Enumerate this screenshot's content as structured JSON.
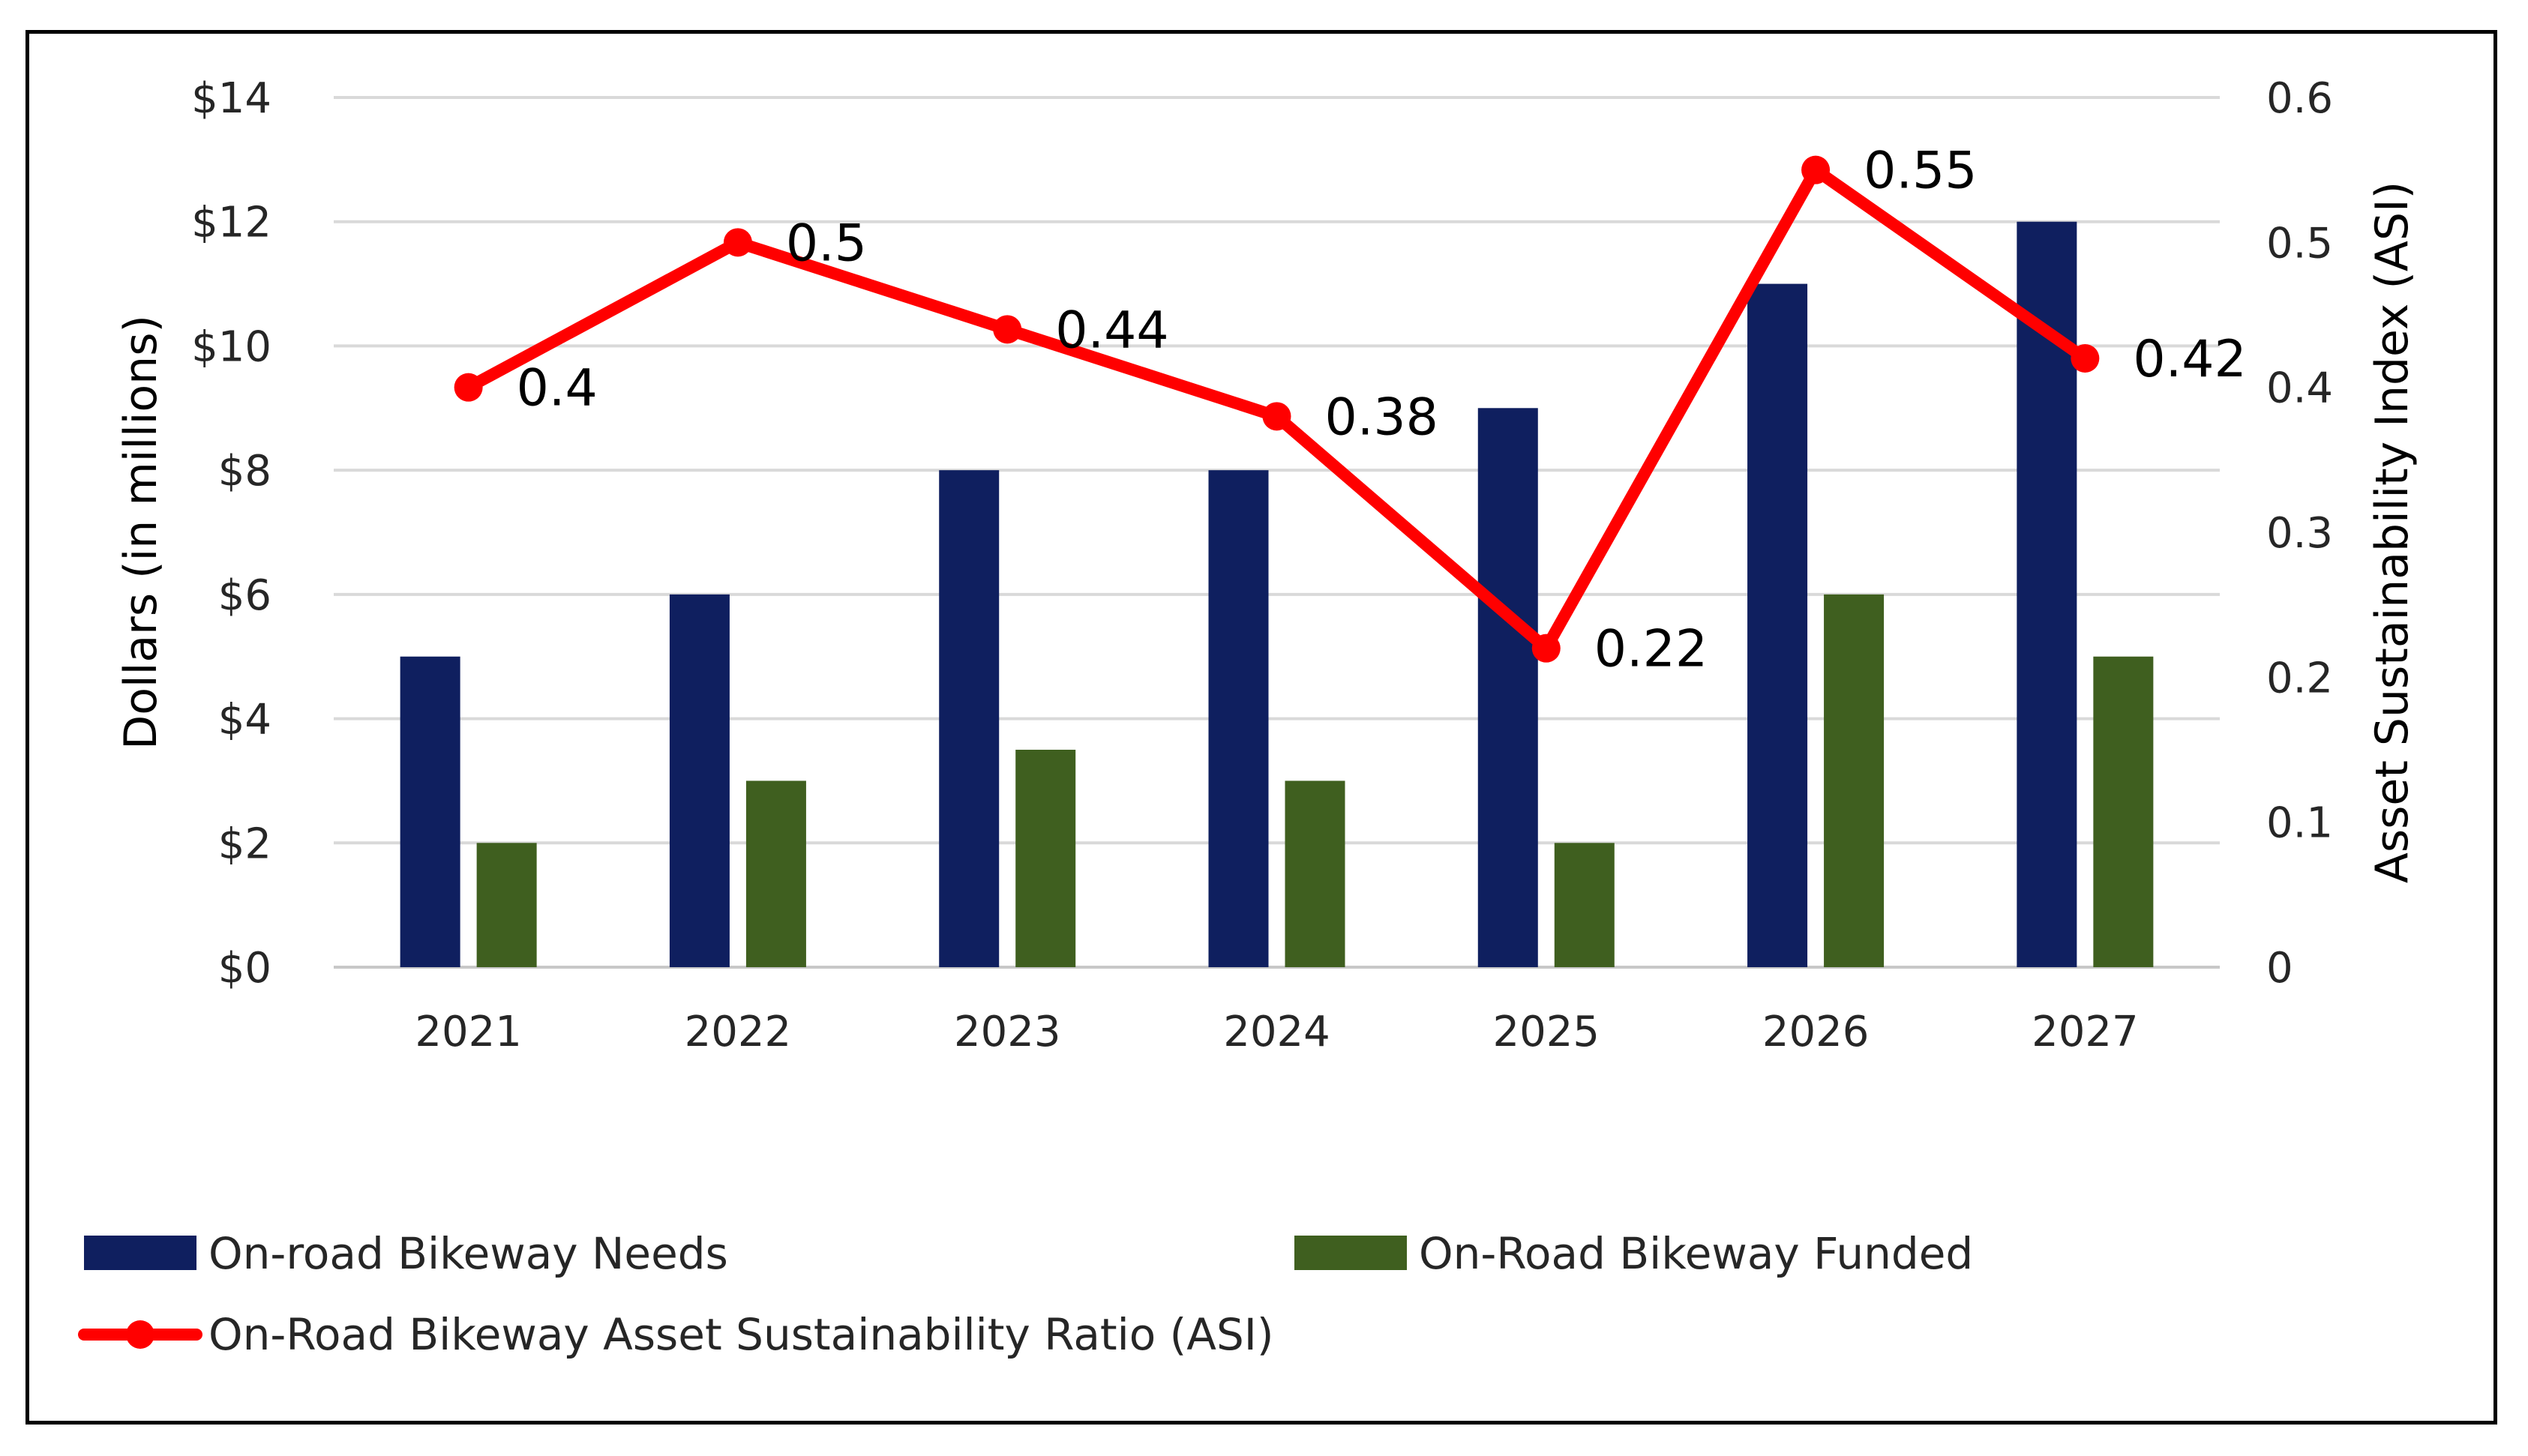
{
  "chart_data": {
    "type": "bar",
    "title": "",
    "categories": [
      "2021",
      "2022",
      "2023",
      "2024",
      "2025",
      "2026",
      "2027"
    ],
    "series": [
      {
        "name": "On-road Bikeway Needs",
        "kind": "bar",
        "axis": "left",
        "color": "#0F1F5F",
        "values": [
          5,
          6,
          8,
          8,
          9,
          11,
          12
        ]
      },
      {
        "name": "On-Road Bikeway Funded",
        "kind": "bar",
        "axis": "left",
        "color": "#3F5F1F",
        "values": [
          2,
          3,
          3.5,
          3,
          2,
          6,
          5
        ]
      },
      {
        "name": "On-Road Bikeway Asset Sustainability Ratio (ASI)",
        "kind": "line",
        "axis": "right",
        "color": "#FF0000",
        "values": [
          0.4,
          0.5,
          0.44,
          0.38,
          0.22,
          0.55,
          0.42
        ],
        "labels": [
          "0.4",
          "0.5",
          "0.44",
          "0.38",
          "0.22",
          "0.55",
          "0.42"
        ]
      }
    ],
    "ylabel": "Dollars (in millions)",
    "ylabel_right": "Asset Sustainability Index (ASI)",
    "ylim": [
      0,
      14
    ],
    "ylim_right": [
      0,
      0.6
    ],
    "yticks": [
      0,
      2,
      4,
      6,
      8,
      10,
      12,
      14
    ],
    "ytick_labels": [
      "$0",
      "$2",
      "$4",
      "$6",
      "$8",
      "$10",
      "$12",
      "$14"
    ],
    "yticks_right": [
      0,
      0.1,
      0.2,
      0.3,
      0.4,
      0.5,
      0.6
    ],
    "ytick_labels_right": [
      "0",
      "0.1",
      "0.2",
      "0.3",
      "0.4",
      "0.5",
      "0.6"
    ],
    "grid": true,
    "legend": "bottom"
  }
}
